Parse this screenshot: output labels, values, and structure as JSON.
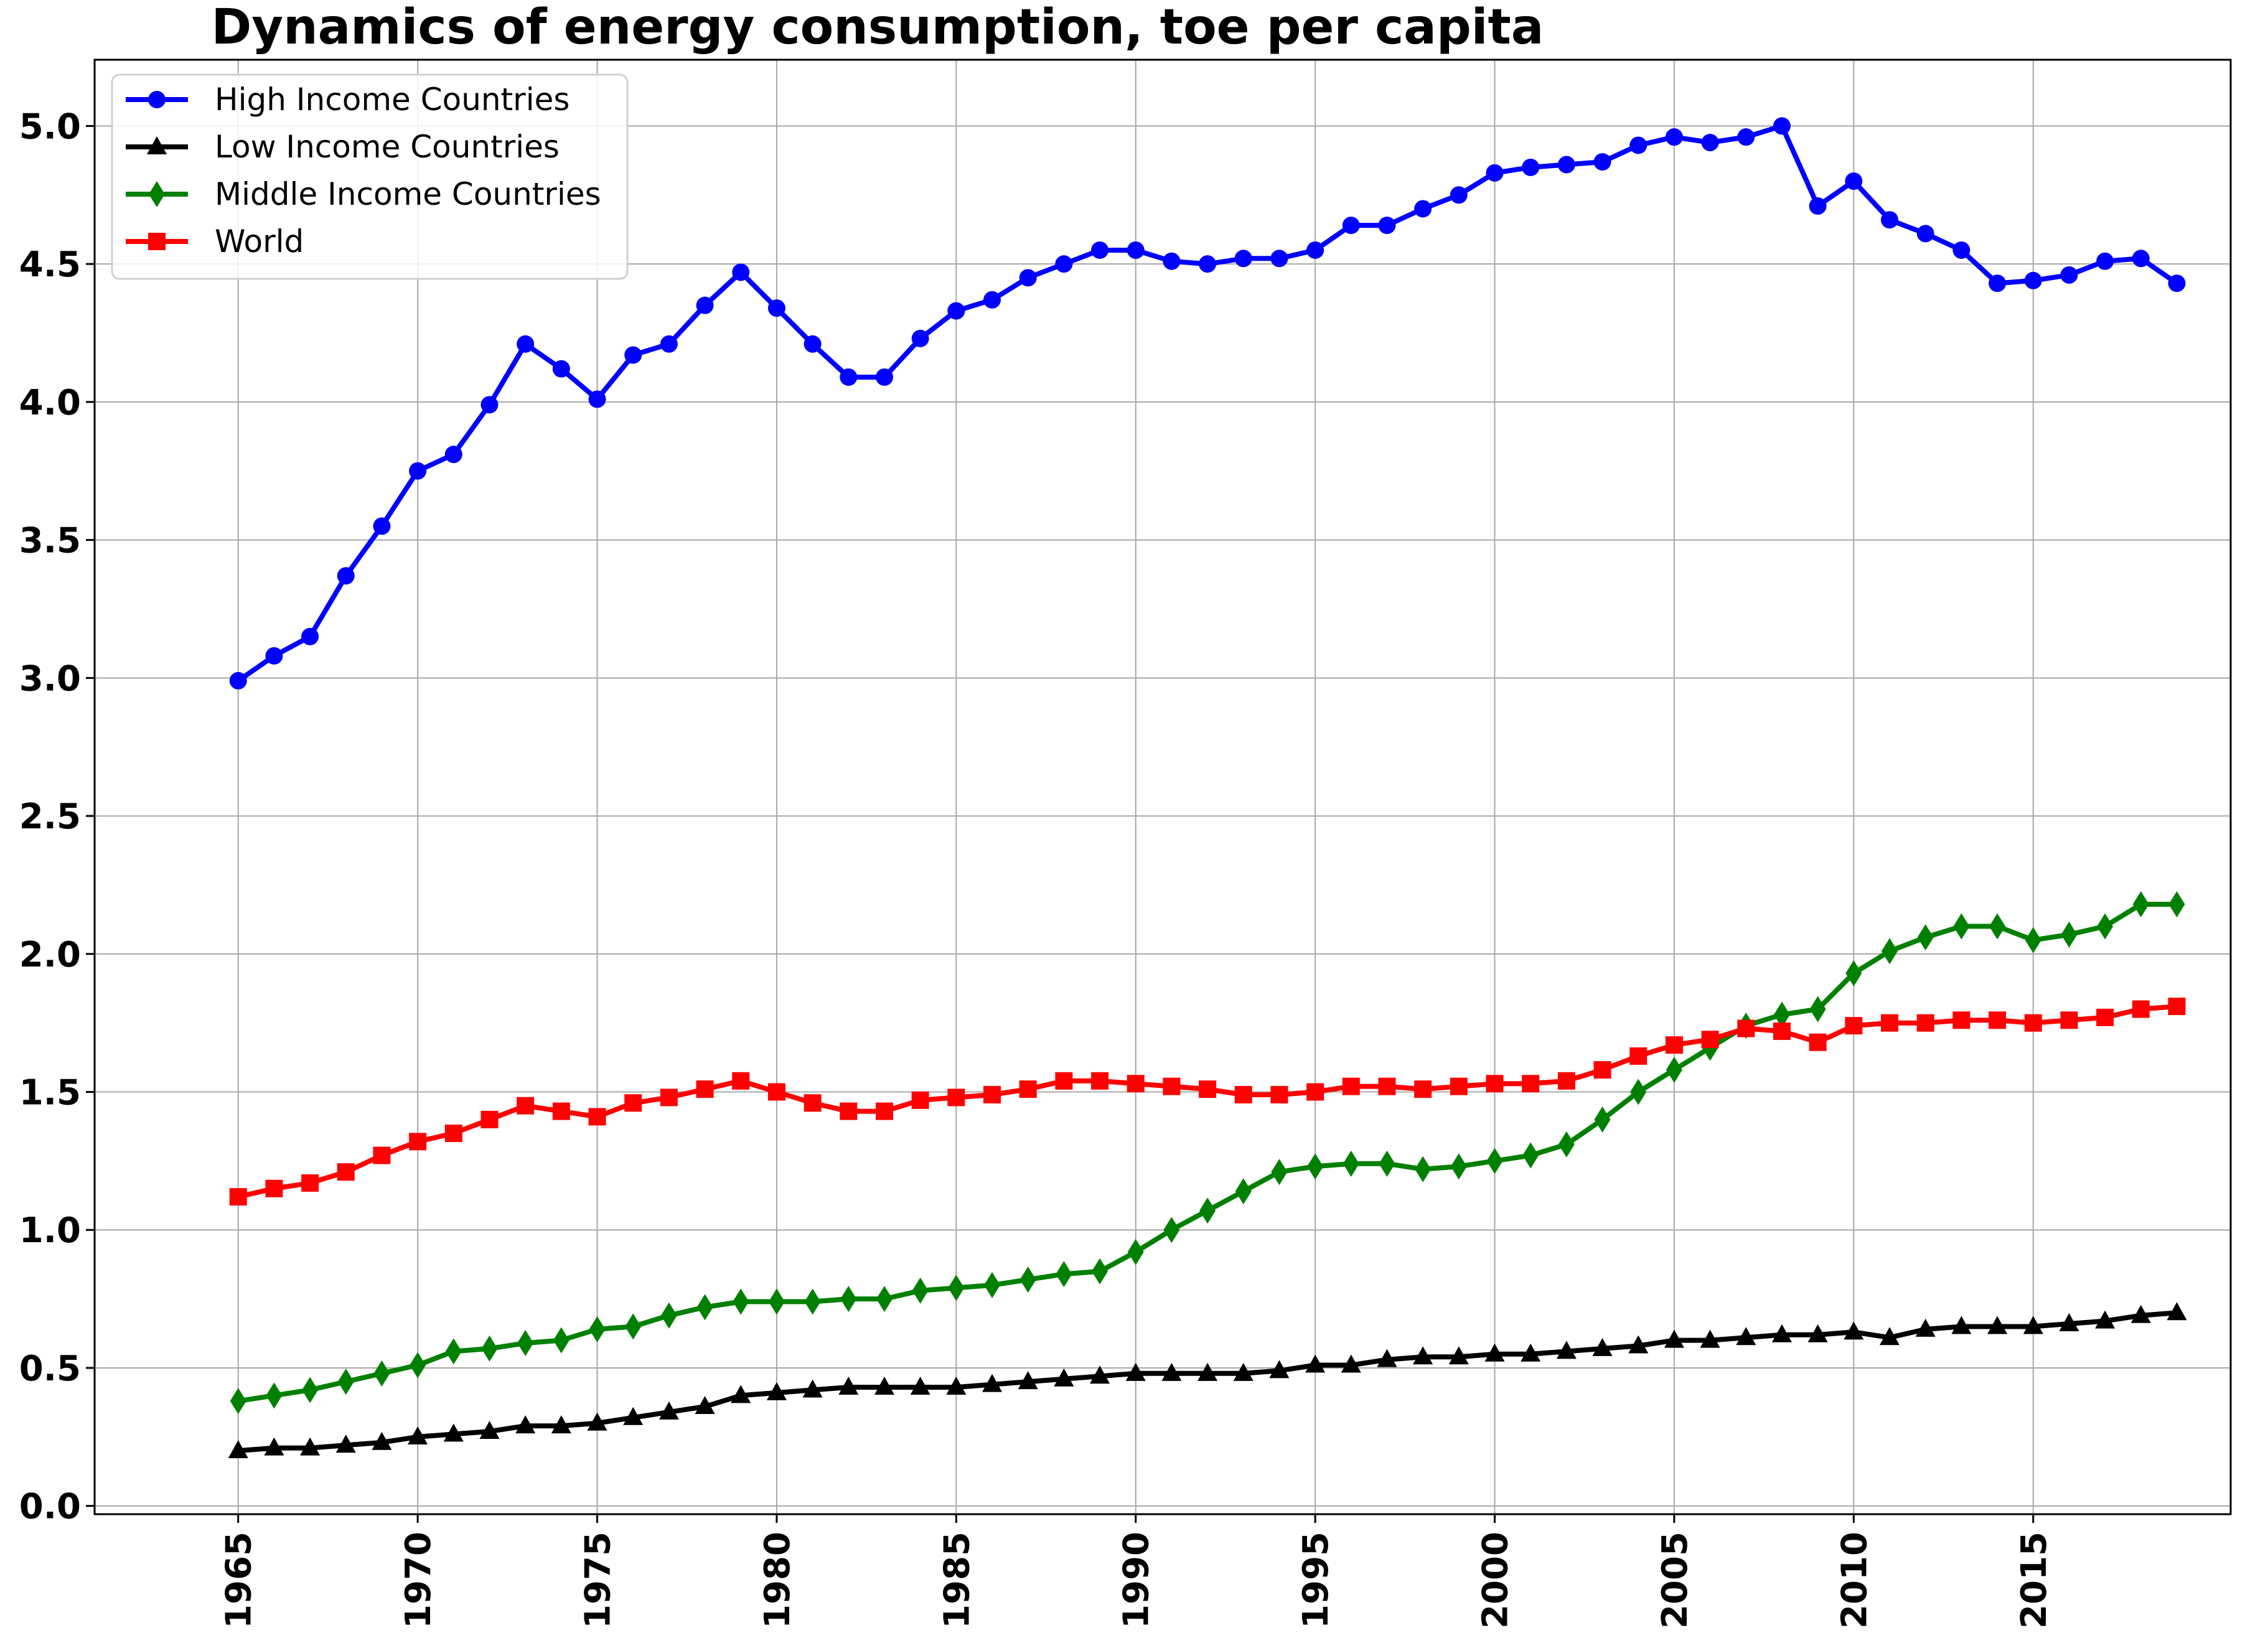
{
  "chart_data": {
    "type": "line",
    "title": "Dynamics of energy consumption, toe per capita",
    "xlabel": "",
    "ylabel": "",
    "x": [
      1965,
      1966,
      1967,
      1968,
      1969,
      1970,
      1971,
      1972,
      1973,
      1974,
      1975,
      1976,
      1977,
      1978,
      1979,
      1980,
      1981,
      1982,
      1983,
      1984,
      1985,
      1986,
      1987,
      1988,
      1989,
      1990,
      1991,
      1992,
      1993,
      1994,
      1995,
      1996,
      1997,
      1998,
      1999,
      2000,
      2001,
      2002,
      2003,
      2004,
      2005,
      2006,
      2007,
      2008,
      2009,
      2010,
      2011,
      2012,
      2013,
      2014,
      2015,
      2016,
      2017,
      2018,
      2019
    ],
    "xticks": [
      "1965",
      "1970",
      "1975",
      "1980",
      "1985",
      "1990",
      "1995",
      "2000",
      "2005",
      "2010",
      "2015"
    ],
    "xlim": [
      1961,
      2020.5
    ],
    "yticks": [
      "0.0",
      "0.5",
      "1.0",
      "1.5",
      "2.0",
      "2.5",
      "3.0",
      "3.5",
      "4.0",
      "4.5",
      "5.0"
    ],
    "ylim": [
      -0.03,
      5.24
    ],
    "grid": true,
    "legend_position": "upper-left",
    "series": [
      {
        "name": "High Income Countries",
        "color": "#0000ff",
        "marker": "circle",
        "values": [
          2.99,
          3.08,
          3.15,
          3.37,
          3.55,
          3.75,
          3.81,
          3.99,
          4.21,
          4.12,
          4.01,
          4.17,
          4.21,
          4.35,
          4.47,
          4.34,
          4.21,
          4.09,
          4.09,
          4.23,
          4.33,
          4.37,
          4.45,
          4.5,
          4.55,
          4.55,
          4.51,
          4.5,
          4.52,
          4.52,
          4.55,
          4.64,
          4.64,
          4.7,
          4.75,
          4.83,
          4.85,
          4.86,
          4.87,
          4.93,
          4.96,
          4.94,
          4.96,
          5.0,
          4.71,
          4.8,
          4.66,
          4.61,
          4.55,
          4.43,
          4.44,
          4.46,
          4.51,
          4.52,
          4.43
        ]
      },
      {
        "name": "Low Income Countries",
        "color": "#000000",
        "marker": "triangle",
        "values": [
          0.2,
          0.21,
          0.21,
          0.22,
          0.23,
          0.25,
          0.26,
          0.27,
          0.29,
          0.29,
          0.3,
          0.32,
          0.34,
          0.36,
          0.4,
          0.41,
          0.42,
          0.43,
          0.43,
          0.43,
          0.43,
          0.44,
          0.45,
          0.46,
          0.47,
          0.48,
          0.48,
          0.48,
          0.48,
          0.49,
          0.51,
          0.51,
          0.53,
          0.54,
          0.54,
          0.55,
          0.55,
          0.56,
          0.57,
          0.58,
          0.6,
          0.6,
          0.61,
          0.62,
          0.62,
          0.63,
          0.61,
          0.64,
          0.65,
          0.65,
          0.65,
          0.66,
          0.67,
          0.69,
          0.7
        ]
      },
      {
        "name": "Middle Income Countries",
        "color": "#008000",
        "marker": "diamond",
        "values": [
          0.38,
          0.4,
          0.42,
          0.45,
          0.48,
          0.51,
          0.56,
          0.57,
          0.59,
          0.6,
          0.64,
          0.65,
          0.69,
          0.72,
          0.74,
          0.74,
          0.74,
          0.75,
          0.75,
          0.78,
          0.79,
          0.8,
          0.82,
          0.84,
          0.85,
          0.92,
          1.0,
          1.07,
          1.14,
          1.21,
          1.23,
          1.24,
          1.24,
          1.22,
          1.23,
          1.25,
          1.27,
          1.31,
          1.4,
          1.5,
          1.58,
          1.66,
          1.74,
          1.78,
          1.8,
          1.93,
          2.01,
          2.06,
          2.1,
          2.1,
          2.05,
          2.07,
          2.1,
          2.18,
          2.18
        ]
      },
      {
        "name": "World",
        "color": "#ff0000",
        "marker": "square",
        "values": [
          1.12,
          1.15,
          1.17,
          1.21,
          1.27,
          1.32,
          1.35,
          1.4,
          1.45,
          1.43,
          1.41,
          1.46,
          1.48,
          1.51,
          1.54,
          1.5,
          1.46,
          1.43,
          1.43,
          1.47,
          1.48,
          1.49,
          1.51,
          1.54,
          1.54,
          1.53,
          1.52,
          1.51,
          1.49,
          1.49,
          1.5,
          1.52,
          1.52,
          1.51,
          1.52,
          1.53,
          1.53,
          1.54,
          1.58,
          1.63,
          1.67,
          1.69,
          1.73,
          1.72,
          1.68,
          1.74,
          1.75,
          1.75,
          1.76,
          1.76,
          1.75,
          1.76,
          1.77,
          1.8,
          1.81
        ]
      }
    ]
  }
}
